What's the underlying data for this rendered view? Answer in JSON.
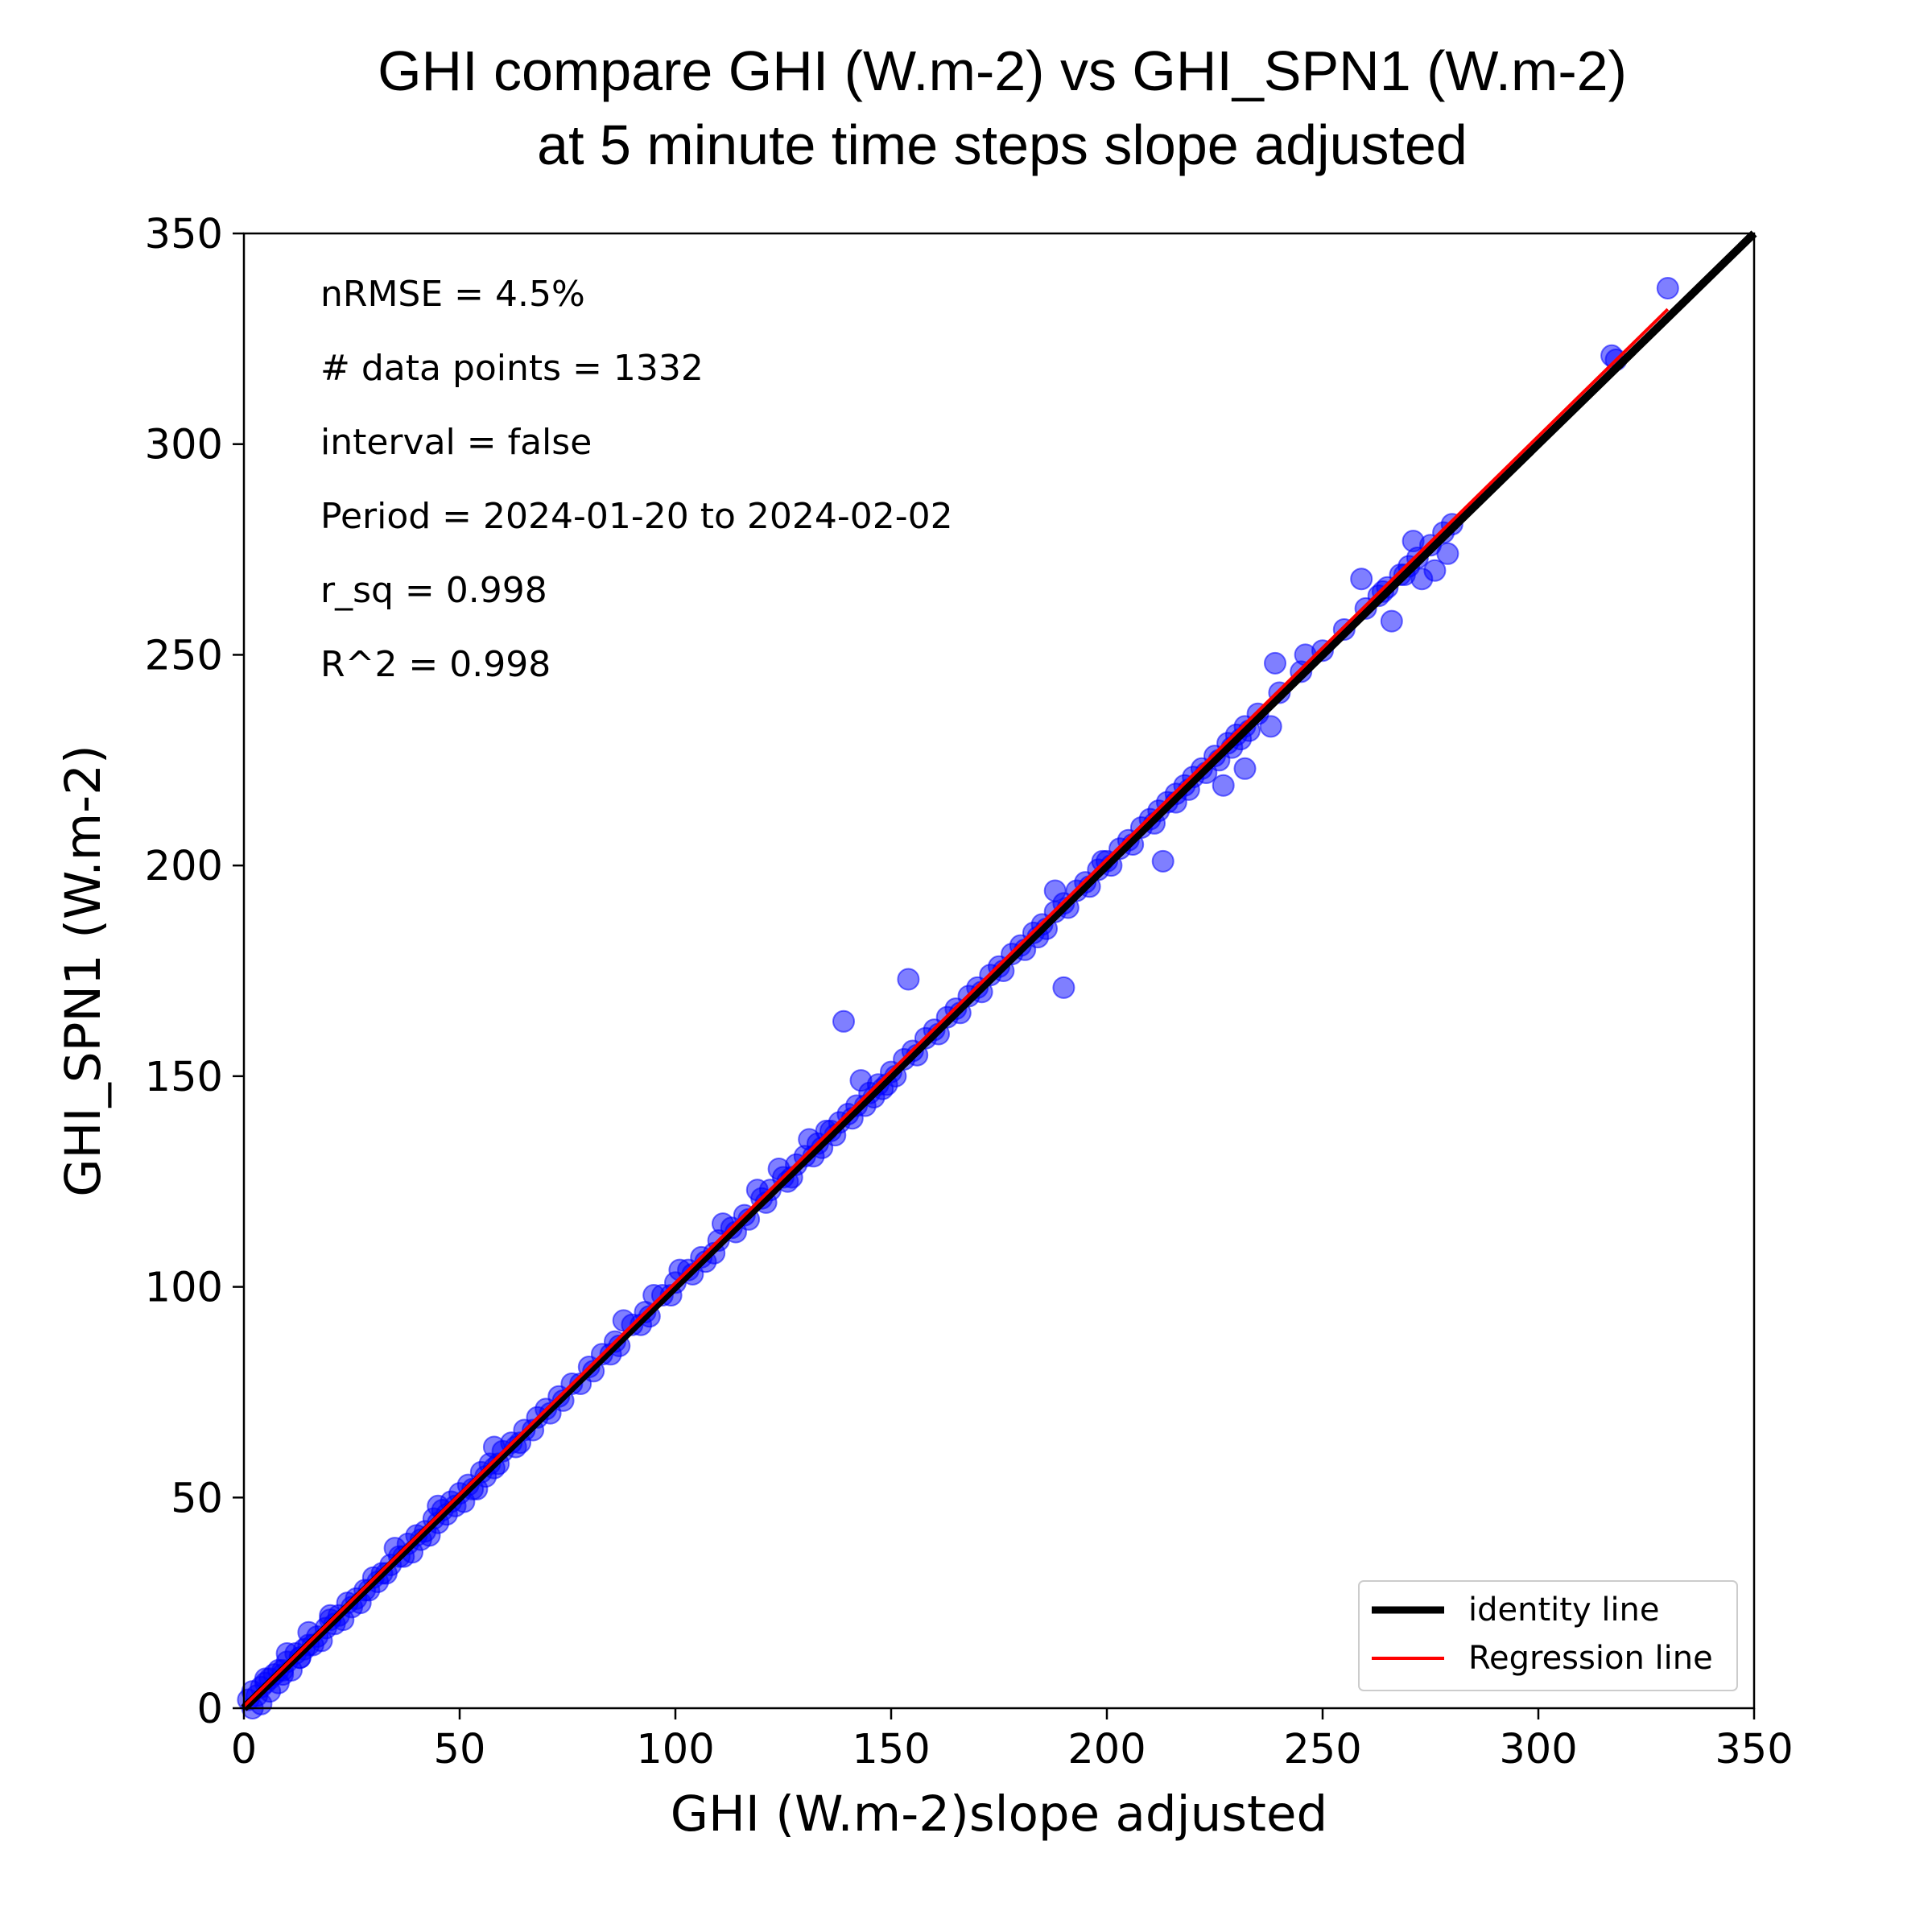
{
  "chart_data": {
    "type": "scatter",
    "title_lines": [
      "GHI compare GHI (W.m-2) vs GHI_SPN1 (W.m-2)",
      "at 5 minute time steps slope adjusted"
    ],
    "xlabel": "GHI (W.m-2)slope adjusted",
    "ylabel": "GHI_SPN1 (W.m-2)",
    "xlim": [
      0,
      350
    ],
    "ylim": [
      0,
      350
    ],
    "x_ticks": [
      0,
      50,
      100,
      150,
      200,
      250,
      300,
      350
    ],
    "y_ticks": [
      0,
      50,
      100,
      150,
      200,
      250,
      300,
      350
    ],
    "grid": false,
    "legend_position": "lower-right",
    "stats": [
      "nRMSE = 4.5%",
      "# data points = 1332",
      "interval = false",
      "Period = 2024-01-20 to 2024-02-02",
      "r_sq = 0.998",
      "R^2 = 0.998"
    ],
    "series": [
      {
        "kind": "points",
        "color": "#0000ff",
        "x": [
          1,
          2,
          3,
          4,
          5,
          6,
          7,
          8,
          9,
          10,
          12,
          14,
          15,
          17,
          19,
          20,
          22,
          24,
          26,
          28,
          30,
          32,
          34,
          36,
          38,
          40,
          42,
          44,
          46,
          48,
          50,
          52,
          55,
          57,
          60,
          62,
          65,
          68,
          70,
          73,
          76,
          80,
          83,
          86,
          90,
          93,
          97,
          100,
          103,
          106,
          110,
          113,
          116,
          120,
          122,
          125,
          128,
          130,
          133,
          136,
          138,
          140,
          142,
          145,
          147,
          150,
          153,
          155,
          158,
          160,
          163,
          165,
          168,
          170,
          173,
          175,
          178,
          180,
          183,
          185,
          188,
          190,
          193,
          195,
          198,
          200,
          203,
          205,
          208,
          210,
          212,
          214,
          216,
          218,
          220,
          222,
          225,
          228,
          230,
          232,
          235,
          240,
          245,
          250,
          255,
          260,
          263,
          265,
          268,
          270,
          272,
          275,
          278,
          280,
          317,
          318,
          330,
          5,
          9,
          13,
          16,
          21,
          25,
          29,
          33,
          37,
          41,
          45,
          49,
          53,
          58,
          64,
          71,
          78,
          85,
          92,
          99,
          107,
          114,
          121,
          127,
          132,
          137,
          141,
          146,
          151,
          156,
          161,
          166,
          171,
          176,
          181,
          186,
          191,
          196,
          201,
          206,
          211,
          216,
          219,
          223,
          226,
          229,
          231,
          233,
          239,
          246,
          259,
          264,
          266,
          269,
          271,
          273,
          276,
          279,
          10,
          15,
          20,
          35,
          45,
          58,
          88,
          95,
          101,
          111,
          119,
          124,
          131,
          135,
          139,
          143,
          148,
          154,
          184,
          188,
          190,
          199,
          213,
          227,
          232,
          238,
          2,
          4,
          6,
          8,
          11,
          13,
          18,
          23,
          27,
          31,
          39,
          43,
          47,
          51,
          54,
          56,
          59,
          63,
          67,
          74,
          81,
          87,
          94,
          104,
          109,
          117,
          126,
          134,
          144,
          149
        ],
        "y": [
          2,
          4,
          3,
          5,
          6,
          7,
          8,
          9,
          8,
          11,
          13,
          14,
          15,
          17,
          19,
          21,
          22,
          25,
          26,
          28,
          31,
          32,
          34,
          36,
          39,
          41,
          42,
          45,
          47,
          49,
          51,
          53,
          56,
          58,
          61,
          63,
          66,
          69,
          71,
          74,
          77,
          81,
          84,
          87,
          91,
          94,
          98,
          101,
          104,
          107,
          111,
          114,
          117,
          121,
          123,
          126,
          129,
          131,
          134,
          137,
          139,
          141,
          143,
          146,
          148,
          151,
          154,
          156,
          159,
          161,
          164,
          166,
          169,
          171,
          174,
          176,
          179,
          181,
          184,
          186,
          189,
          191,
          194,
          196,
          199,
          201,
          204,
          206,
          209,
          211,
          213,
          215,
          217,
          219,
          221,
          223,
          226,
          229,
          231,
          233,
          236,
          241,
          246,
          251,
          256,
          261,
          264,
          266,
          269,
          271,
          273,
          276,
          279,
          281,
          321,
          320,
          337,
          7,
          9,
          12,
          15,
          20,
          24,
          28,
          32,
          36,
          40,
          44,
          48,
          52,
          57,
          63,
          70,
          77,
          84,
          91,
          98,
          106,
          113,
          120,
          126,
          131,
          136,
          140,
          145,
          150,
          155,
          160,
          165,
          170,
          175,
          180,
          185,
          190,
          195,
          200,
          205,
          210,
          215,
          218,
          222,
          225,
          228,
          230,
          232,
          248,
          250,
          268,
          265,
          258,
          269,
          277,
          268,
          270,
          274,
          13,
          18,
          22,
          38,
          48,
          62,
          92,
          98,
          104,
          115,
          123,
          128,
          135,
          137,
          163,
          149,
          147,
          173,
          183,
          194,
          171,
          201,
          201,
          219,
          223,
          233,
          0,
          1,
          4,
          6,
          9,
          12,
          16,
          21,
          25,
          30,
          37,
          41,
          46,
          49,
          52,
          55,
          58,
          62,
          66,
          73,
          80,
          86,
          93,
          103,
          108,
          116,
          125,
          133,
          143,
          148
        ]
      },
      {
        "kind": "line",
        "name": "identity line",
        "color": "#000000",
        "x": [
          0,
          350
        ],
        "y": [
          0,
          350
        ]
      },
      {
        "kind": "line",
        "name": "Regression line",
        "color": "#ff0000",
        "x": [
          0,
          330
        ],
        "y": [
          0.5,
          332
        ]
      }
    ]
  }
}
